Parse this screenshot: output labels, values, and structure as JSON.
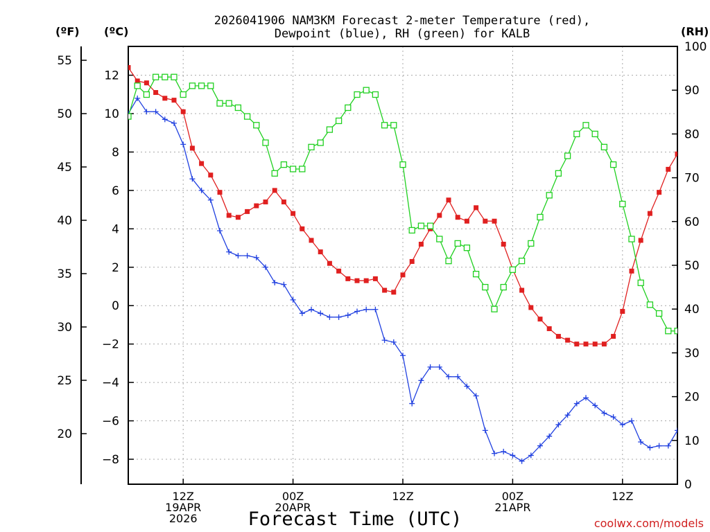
{
  "chart_data": {
    "type": "line",
    "title_line1": "2026041906 NAM3KM Forecast 2-meter Temperature (red),",
    "title_line2": "Dewpoint (blue), RH (green) for KALB",
    "xlabel": "Forecast Time (UTC)",
    "credit": "coolwx.com/models",
    "units": {
      "fahrenheit": "(ºF)",
      "celsius": "(ºC)",
      "rh": "(RH)"
    },
    "x_range_hours": [
      7,
      67
    ],
    "y_celsius_range": [
      -9.3,
      13.5
    ],
    "y_fahrenheit_range": [
      15.26,
      56.3
    ],
    "y_rh_range": [
      0,
      100
    ],
    "celsius_ticks": [
      "12",
      "10",
      "8",
      "6",
      "4",
      "2",
      "0",
      "−2",
      "−4",
      "−6",
      "−8"
    ],
    "celsius_tick_values": [
      12,
      10,
      8,
      6,
      4,
      2,
      0,
      -2,
      -4,
      -6,
      -8
    ],
    "fahrenheit_ticks": [
      "55",
      "50",
      "45",
      "40",
      "35",
      "30",
      "25",
      "20"
    ],
    "fahrenheit_tick_values": [
      55,
      50,
      45,
      40,
      35,
      30,
      25,
      20
    ],
    "rh_ticks": [
      "100",
      "90",
      "80",
      "70",
      "60",
      "50",
      "40",
      "30",
      "20",
      "10",
      "0"
    ],
    "rh_tick_values": [
      100,
      90,
      80,
      70,
      60,
      50,
      40,
      30,
      20,
      10,
      0
    ],
    "x_ticks": [
      {
        "hour": 13,
        "lines": [
          "12Z",
          "19APR",
          "2026"
        ]
      },
      {
        "hour": 25,
        "lines": [
          "00Z",
          "20APR"
        ]
      },
      {
        "hour": 37,
        "lines": [
          "12Z"
        ]
      },
      {
        "hour": 49,
        "lines": [
          "00Z",
          "21APR"
        ]
      },
      {
        "hour": 61,
        "lines": [
          "12Z"
        ]
      }
    ],
    "x_hours": [
      7,
      8,
      9,
      10,
      11,
      12,
      13,
      14,
      15,
      16,
      17,
      18,
      19,
      20,
      21,
      22,
      23,
      24,
      25,
      26,
      27,
      28,
      29,
      30,
      31,
      32,
      33,
      34,
      35,
      36,
      37,
      38,
      39,
      40,
      41,
      42,
      43,
      44,
      45,
      46,
      47,
      48,
      49,
      50,
      51,
      52,
      53,
      54,
      55,
      56,
      57,
      58,
      59,
      60,
      61,
      62,
      63,
      64,
      65,
      66,
      67
    ],
    "series": [
      {
        "name": "2-meter Temperature",
        "color": "#e02020",
        "marker": "filled-square",
        "axis": "celsius",
        "values": [
          12.4,
          11.7,
          11.6,
          11.1,
          10.8,
          10.7,
          10.1,
          8.2,
          7.4,
          6.8,
          5.9,
          4.7,
          4.6,
          4.9,
          5.2,
          5.4,
          6.0,
          5.4,
          4.8,
          4.0,
          3.4,
          2.8,
          2.2,
          1.8,
          1.4,
          1.3,
          1.3,
          1.4,
          0.8,
          0.7,
          1.6,
          2.3,
          3.2,
          4.0,
          4.7,
          5.5,
          4.6,
          4.4,
          5.1,
          4.4,
          4.4,
          3.2,
          1.9,
          0.8,
          -0.1,
          -0.7,
          -1.2,
          -1.6,
          -1.8,
          -2.0,
          -2.0,
          -2.0,
          -2.0,
          -1.6,
          -0.3,
          1.8,
          3.4,
          4.8,
          5.9,
          7.1,
          7.9
        ]
      },
      {
        "name": "Dewpoint",
        "color": "#2040e0",
        "marker": "plus",
        "axis": "celsius",
        "values": [
          10.0,
          10.8,
          10.1,
          10.1,
          9.7,
          9.5,
          8.4,
          6.6,
          6.0,
          5.5,
          3.9,
          2.8,
          2.6,
          2.6,
          2.5,
          2.0,
          1.2,
          1.1,
          0.3,
          -0.4,
          -0.2,
          -0.4,
          -0.6,
          -0.6,
          -0.5,
          -0.3,
          -0.2,
          -0.2,
          -1.8,
          -1.9,
          -2.6,
          -5.1,
          -3.9,
          -3.2,
          -3.2,
          -3.7,
          -3.7,
          -4.2,
          -4.7,
          -6.5,
          -7.7,
          -7.6,
          -7.8,
          -8.1,
          -7.8,
          -7.3,
          -6.8,
          -6.2,
          -5.7,
          -5.1,
          -4.8,
          -5.2,
          -5.6,
          -5.8,
          -6.2,
          -6.0,
          -7.1,
          -7.4,
          -7.3,
          -7.3,
          -6.5
        ]
      },
      {
        "name": "RH",
        "color": "#20d020",
        "marker": "open-square",
        "axis": "rh",
        "values": [
          84,
          91,
          89,
          93,
          93,
          93,
          89,
          91,
          91,
          91,
          87,
          87,
          86,
          84,
          82,
          78,
          71,
          73,
          72,
          72,
          77,
          78,
          81,
          83,
          86,
          89,
          90,
          89,
          82,
          82,
          73,
          58,
          59,
          59,
          56,
          51,
          55,
          54,
          48,
          45,
          40,
          45,
          49,
          51,
          55,
          61,
          66,
          71,
          75,
          80,
          82,
          80,
          77,
          73,
          64,
          56,
          46,
          41,
          39,
          35,
          35
        ]
      }
    ]
  }
}
